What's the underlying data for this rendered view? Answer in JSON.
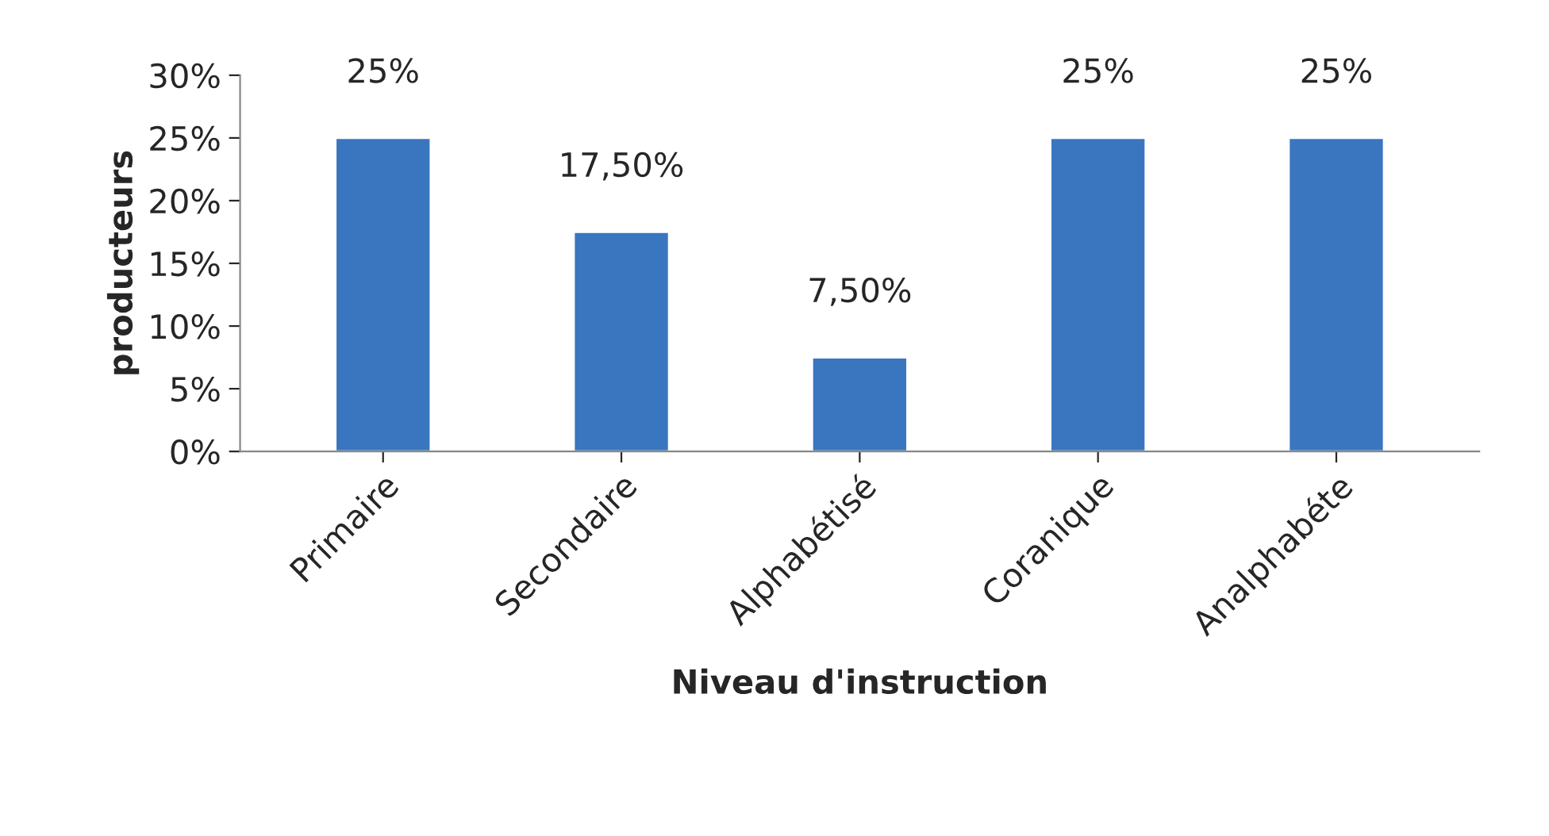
{
  "chart_data": {
    "type": "bar",
    "xlabel": "Niveau d'instruction",
    "ylabel": "producteurs",
    "categories": [
      "Primaire",
      "Secondaire",
      "Alphabétisé",
      "Coranique",
      "Analphabéte"
    ],
    "values": [
      25,
      17.5,
      7.5,
      25,
      25
    ],
    "value_labels": [
      "25%",
      "17,50%",
      "7,50%",
      "25%",
      "25%"
    ],
    "color": "#3a76c0",
    "ylim": [
      0,
      30
    ],
    "yticks": [
      {
        "value": 0,
        "label": "0%"
      },
      {
        "value": 5,
        "label": "5%"
      },
      {
        "value": 10,
        "label": "10%"
      },
      {
        "value": 15,
        "label": "15%"
      },
      {
        "value": 20,
        "label": "20%"
      },
      {
        "value": 25,
        "label": "25%"
      },
      {
        "value": 30,
        "label": "30%"
      }
    ],
    "grid": false
  }
}
